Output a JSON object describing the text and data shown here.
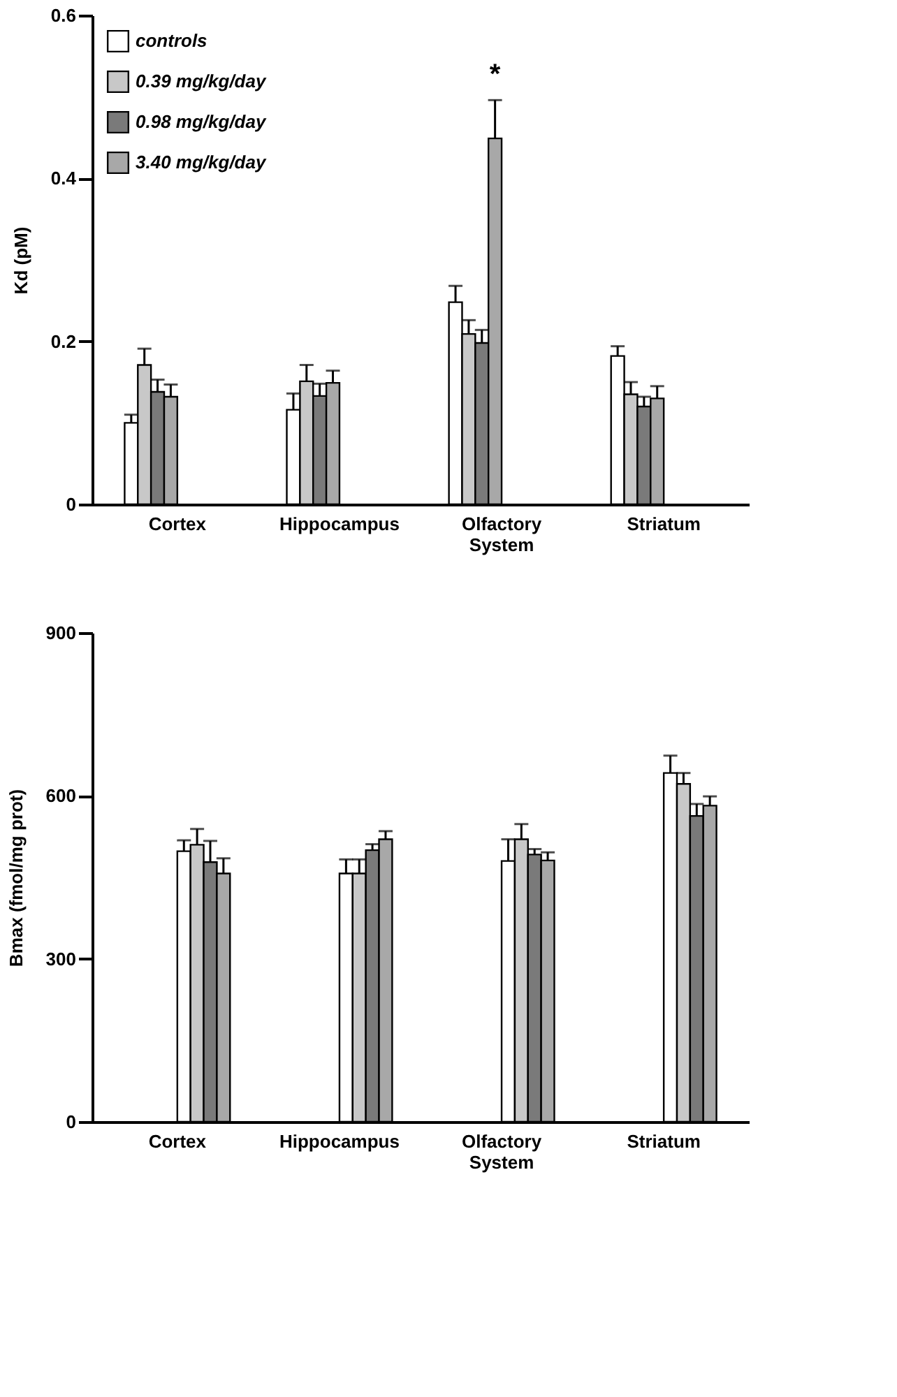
{
  "chart_data": [
    {
      "type": "bar",
      "ylabel": "Kd (pM)",
      "categories": [
        "Cortex",
        "Hippocampus",
        "Olfactory System",
        "Striatum"
      ],
      "ylim": [
        0,
        0.6
      ],
      "yticks": [
        0,
        0.2,
        0.4,
        0.6
      ],
      "grid": false,
      "legend": "top left",
      "series": [
        {
          "name": "controls",
          "color": "#ffffff",
          "values": [
            0.1,
            0.116,
            0.248,
            0.182
          ],
          "errors": [
            0.01,
            0.02,
            0.02,
            0.012
          ]
        },
        {
          "name": "0.39 mg/kg/day",
          "color": "#c8c8c8",
          "values": [
            0.171,
            0.151,
            0.209,
            0.135
          ],
          "errors": [
            0.02,
            0.02,
            0.017,
            0.015
          ]
        },
        {
          "name": "0.98 mg/kg/day",
          "color": "#7a7a7a",
          "values": [
            0.138,
            0.133,
            0.198,
            0.12
          ],
          "errors": [
            0.015,
            0.015,
            0.016,
            0.012
          ]
        },
        {
          "name": "3.40 mg/kg/day",
          "color": "#a8a8a8",
          "values": [
            0.132,
            0.149,
            0.449,
            0.13
          ],
          "errors": [
            0.015,
            0.015,
            0.047,
            0.015
          ]
        }
      ],
      "annotations": [
        "*"
      ]
    },
    {
      "type": "bar",
      "ylabel": "Bmax (fmol/mg prot)",
      "categories": [
        "Cortex",
        "Hippocampus",
        "Olfactory System",
        "Striatum"
      ],
      "ylim": [
        0,
        900
      ],
      "yticks": [
        0,
        300,
        600,
        900
      ],
      "grid": false,
      "legend": false,
      "series": [
        {
          "color": "#ffffff",
          "values": [
            498,
            457,
            480,
            642
          ],
          "errors": [
            20,
            26,
            40,
            32
          ]
        },
        {
          "color": "#c8c8c8",
          "values": [
            510,
            457,
            520,
            622
          ],
          "errors": [
            29,
            26,
            28,
            20
          ]
        },
        {
          "color": "#7a7a7a",
          "values": [
            478,
            500,
            492,
            563
          ],
          "errors": [
            39,
            11,
            10,
            22
          ]
        },
        {
          "color": "#a8a8a8",
          "values": [
            457,
            520,
            481,
            582
          ],
          "errors": [
            28,
            15,
            15,
            17
          ]
        }
      ]
    }
  ]
}
